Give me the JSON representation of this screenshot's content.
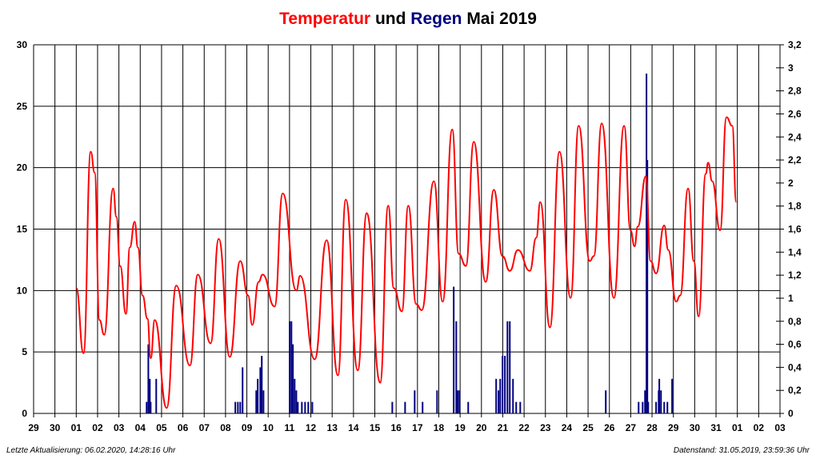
{
  "chart_data": {
    "type": "line",
    "title": {
      "parts": [
        {
          "text": "Temperatur",
          "color": "#ff0000"
        },
        {
          "text": "und",
          "color": "#000000"
        },
        {
          "text": "Regen",
          "color": "#000080"
        },
        {
          "text": "Mai 2019",
          "color": "#000000"
        }
      ]
    },
    "x_tick_labels": [
      "29",
      "30",
      "01",
      "02",
      "03",
      "04",
      "05",
      "06",
      "07",
      "08",
      "09",
      "10",
      "11",
      "12",
      "13",
      "14",
      "15",
      "16",
      "17",
      "18",
      "19",
      "20",
      "21",
      "22",
      "23",
      "24",
      "25",
      "26",
      "27",
      "28",
      "29",
      "30",
      "31",
      "01",
      "02",
      "03"
    ],
    "xlim_days_of_may": [
      -1,
      34
    ],
    "y_left": {
      "ylim": [
        0,
        30
      ],
      "ticks": [
        "0",
        "5",
        "10",
        "15",
        "20",
        "25",
        "30"
      ]
    },
    "y_right": {
      "ylim": [
        0,
        3.2
      ],
      "ticks": [
        "0",
        "0,2",
        "0,4",
        "0,6",
        "0,8",
        "1",
        "1,2",
        "1,4",
        "1,6",
        "1,8",
        "2",
        "2,2",
        "2,4",
        "2,6",
        "2,8",
        "3",
        "3,2"
      ]
    },
    "grid": true,
    "series": [
      {
        "name": "Temperatur",
        "type": "line",
        "axis": "left",
        "color": "#ff0000",
        "points": [
          [
            1.0,
            10.2
          ],
          [
            1.34,
            4.9
          ],
          [
            1.68,
            21.3
          ],
          [
            1.86,
            19.6
          ],
          [
            2.09,
            7.6
          ],
          [
            2.31,
            6.4
          ],
          [
            2.73,
            18.3
          ],
          [
            2.88,
            16
          ],
          [
            3.06,
            12
          ],
          [
            3.33,
            8.1
          ],
          [
            3.51,
            13.5
          ],
          [
            3.74,
            15.6
          ],
          [
            3.89,
            13.5
          ],
          [
            4.11,
            9.6
          ],
          [
            4.34,
            7.7
          ],
          [
            4.49,
            4.5
          ],
          [
            4.68,
            7.6
          ],
          [
            5.24,
            0.45
          ],
          [
            5.69,
            10.4
          ],
          [
            6.33,
            3.9
          ],
          [
            6.7,
            11.3
          ],
          [
            7.3,
            5.7
          ],
          [
            7.68,
            14.2
          ],
          [
            8.2,
            4.6
          ],
          [
            8.69,
            12.4
          ],
          [
            9.06,
            9.6
          ],
          [
            9.25,
            7.2
          ],
          [
            9.55,
            10.7
          ],
          [
            9.74,
            11.3
          ],
          [
            10.3,
            8.7
          ],
          [
            10.68,
            17.9
          ],
          [
            11.32,
            10
          ],
          [
            11.5,
            11.2
          ],
          [
            12.18,
            4.4
          ],
          [
            12.74,
            14.1
          ],
          [
            13.27,
            3.1
          ],
          [
            13.64,
            17.4
          ],
          [
            14.2,
            3.5
          ],
          [
            14.62,
            16.3
          ],
          [
            15.25,
            2.5
          ],
          [
            15.63,
            16.9
          ],
          [
            15.89,
            10.2
          ],
          [
            16.27,
            8.3
          ],
          [
            16.57,
            16.9
          ],
          [
            16.94,
            8.9
          ],
          [
            17.2,
            8.4
          ],
          [
            17.77,
            18.9
          ],
          [
            18.18,
            9.1
          ],
          [
            18.63,
            23.1
          ],
          [
            18.93,
            13
          ],
          [
            19.27,
            12
          ],
          [
            19.64,
            22.1
          ],
          [
            20.2,
            10.7
          ],
          [
            20.58,
            18.2
          ],
          [
            20.99,
            12.8
          ],
          [
            21.33,
            11.6
          ],
          [
            21.71,
            13.3
          ],
          [
            22.27,
            11.6
          ],
          [
            22.57,
            14.3
          ],
          [
            22.76,
            17.2
          ],
          [
            23.21,
            7
          ],
          [
            23.66,
            21.3
          ],
          [
            24.18,
            9.4
          ],
          [
            24.56,
            23.4
          ],
          [
            25.08,
            12.4
          ],
          [
            25.27,
            12.8
          ],
          [
            25.64,
            23.6
          ],
          [
            26.21,
            9.4
          ],
          [
            26.69,
            23.4
          ],
          [
            26.99,
            14.9
          ],
          [
            27.18,
            13.6
          ],
          [
            27.33,
            15.2
          ],
          [
            27.71,
            19.3
          ],
          [
            27.93,
            12.4
          ],
          [
            28.19,
            11.4
          ],
          [
            28.57,
            15.3
          ],
          [
            28.76,
            13.3
          ],
          [
            29.13,
            9.1
          ],
          [
            29.32,
            9.6
          ],
          [
            29.69,
            18.3
          ],
          [
            29.96,
            12.4
          ],
          [
            30.18,
            7.9
          ],
          [
            30.52,
            19.5
          ],
          [
            30.63,
            20.4
          ],
          [
            30.82,
            18.9
          ],
          [
            31.19,
            14.9
          ],
          [
            31.49,
            24.1
          ],
          [
            31.76,
            23.4
          ],
          [
            31.95,
            17.2
          ]
        ]
      },
      {
        "name": "Regen",
        "type": "bar",
        "axis": "right",
        "color": "#000080",
        "points": [
          [
            4.3,
            0.1
          ],
          [
            4.38,
            0.6
          ],
          [
            4.45,
            0.3
          ],
          [
            4.49,
            0.1
          ],
          [
            4.75,
            0.3
          ],
          [
            8.46,
            0.1
          ],
          [
            8.58,
            0.1
          ],
          [
            8.69,
            0.1
          ],
          [
            8.8,
            0.4
          ],
          [
            9.44,
            0.2
          ],
          [
            9.51,
            0.3
          ],
          [
            9.63,
            0.4
          ],
          [
            9.7,
            0.5
          ],
          [
            9.78,
            0.2
          ],
          [
            11.01,
            0.8
          ],
          [
            11.09,
            0.8
          ],
          [
            11.16,
            0.6
          ],
          [
            11.24,
            0.3
          ],
          [
            11.32,
            0.2
          ],
          [
            11.39,
            0.1
          ],
          [
            11.58,
            0.1
          ],
          [
            11.73,
            0.1
          ],
          [
            11.88,
            0.1
          ],
          [
            12.07,
            0.1
          ],
          [
            15.82,
            0.1
          ],
          [
            16.42,
            0.1
          ],
          [
            16.87,
            0.2
          ],
          [
            17.24,
            0.1
          ],
          [
            17.92,
            0.2
          ],
          [
            18.7,
            1.1
          ],
          [
            18.82,
            0.8
          ],
          [
            18.89,
            0.2
          ],
          [
            18.97,
            0.2
          ],
          [
            19.38,
            0.1
          ],
          [
            20.69,
            0.3
          ],
          [
            20.8,
            0.2
          ],
          [
            20.88,
            0.3
          ],
          [
            20.99,
            0.5
          ],
          [
            21.1,
            0.5
          ],
          [
            21.22,
            0.8
          ],
          [
            21.33,
            0.8
          ],
          [
            21.48,
            0.3
          ],
          [
            21.63,
            0.1
          ],
          [
            21.82,
            0.1
          ],
          [
            25.83,
            0.2
          ],
          [
            27.37,
            0.1
          ],
          [
            27.56,
            0.1
          ],
          [
            27.67,
            0.2
          ],
          [
            27.74,
            2.95
          ],
          [
            27.78,
            2.2
          ],
          [
            27.82,
            0.1
          ],
          [
            28.19,
            0.1
          ],
          [
            28.31,
            0.2
          ],
          [
            28.34,
            0.3
          ],
          [
            28.42,
            0.2
          ],
          [
            28.57,
            0.1
          ],
          [
            28.72,
            0.1
          ],
          [
            28.94,
            0.3
          ]
        ]
      }
    ]
  },
  "footer": {
    "left": "Letzte Aktualisierung: 06.02.2020, 14:28:16 Uhr",
    "right": "Datenstand: 31.05.2019, 23:59:36 Uhr"
  }
}
